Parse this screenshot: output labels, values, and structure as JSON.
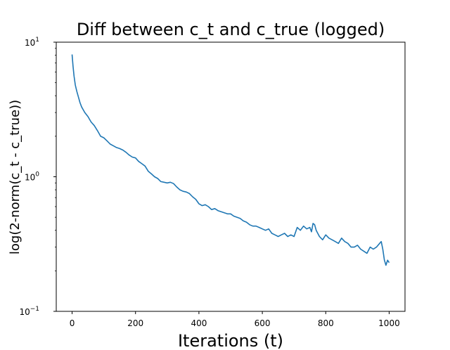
{
  "chart_data": {
    "type": "line",
    "title": "Diff between c_t and c_true (logged)",
    "xlabel": "Iterations (t)",
    "ylabel": "log(2-norm(c_t - c_true))",
    "xlim": [
      -50,
      1050
    ],
    "ylim": [
      0.1,
      10
    ],
    "yscale": "log",
    "grid": false,
    "x_ticks": [
      0,
      200,
      400,
      600,
      800,
      1000
    ],
    "x_tick_labels": [
      "0",
      "200",
      "400",
      "600",
      "800",
      "1000"
    ],
    "y_ticks": [
      {
        "value": 10,
        "base": "10",
        "exp": "1"
      },
      {
        "value": 1,
        "base": "10",
        "exp": "0"
      },
      {
        "value": 0.1,
        "base": "10",
        "exp": "−1"
      }
    ],
    "series": [
      {
        "color": "#1f77b4",
        "x": [
          0,
          3,
          6,
          10,
          15,
          20,
          25,
          30,
          40,
          50,
          60,
          70,
          80,
          90,
          100,
          110,
          120,
          130,
          140,
          150,
          160,
          170,
          180,
          190,
          200,
          210,
          220,
          230,
          240,
          250,
          260,
          270,
          280,
          290,
          300,
          310,
          320,
          330,
          340,
          350,
          360,
          370,
          380,
          390,
          400,
          410,
          420,
          430,
          440,
          450,
          460,
          470,
          480,
          490,
          500,
          510,
          520,
          530,
          540,
          550,
          560,
          570,
          580,
          590,
          600,
          610,
          620,
          630,
          640,
          650,
          660,
          670,
          680,
          690,
          700,
          710,
          720,
          730,
          740,
          750,
          755,
          760,
          765,
          770,
          780,
          790,
          800,
          810,
          820,
          830,
          840,
          850,
          860,
          870,
          880,
          890,
          900,
          910,
          920,
          930,
          940,
          950,
          960,
          970,
          975,
          980,
          985,
          990,
          995,
          1000
        ],
        "y": [
          8.1,
          6.6,
          5.6,
          4.8,
          4.3,
          3.9,
          3.55,
          3.3,
          3.0,
          2.8,
          2.55,
          2.4,
          2.2,
          2.0,
          1.95,
          1.85,
          1.75,
          1.7,
          1.65,
          1.62,
          1.58,
          1.52,
          1.45,
          1.4,
          1.38,
          1.3,
          1.25,
          1.2,
          1.1,
          1.05,
          1.0,
          0.97,
          0.92,
          0.91,
          0.9,
          0.91,
          0.89,
          0.84,
          0.8,
          0.78,
          0.77,
          0.75,
          0.71,
          0.68,
          0.63,
          0.61,
          0.62,
          0.6,
          0.57,
          0.58,
          0.56,
          0.55,
          0.54,
          0.53,
          0.53,
          0.51,
          0.5,
          0.49,
          0.47,
          0.46,
          0.44,
          0.43,
          0.43,
          0.42,
          0.41,
          0.4,
          0.41,
          0.38,
          0.37,
          0.36,
          0.37,
          0.38,
          0.36,
          0.37,
          0.36,
          0.42,
          0.4,
          0.43,
          0.41,
          0.42,
          0.39,
          0.45,
          0.44,
          0.4,
          0.36,
          0.34,
          0.37,
          0.35,
          0.34,
          0.33,
          0.32,
          0.35,
          0.33,
          0.32,
          0.3,
          0.3,
          0.31,
          0.29,
          0.28,
          0.27,
          0.3,
          0.29,
          0.3,
          0.32,
          0.33,
          0.29,
          0.24,
          0.22,
          0.24,
          0.23
        ]
      }
    ]
  }
}
